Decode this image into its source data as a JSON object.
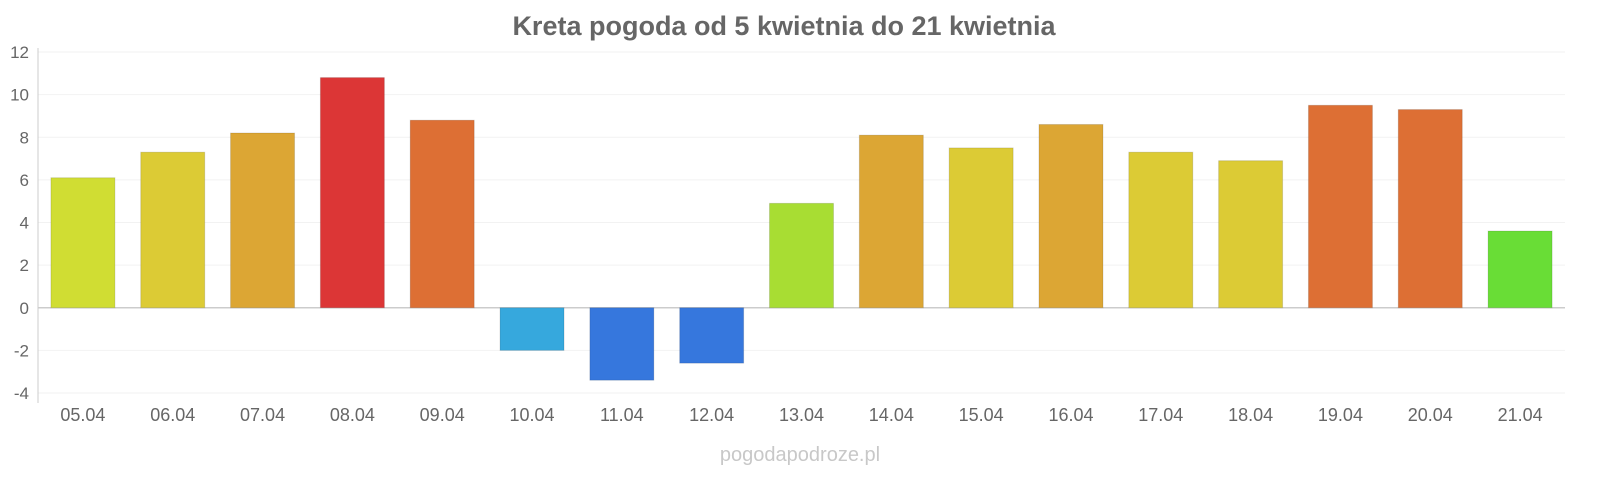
{
  "chart_data": {
    "type": "bar",
    "title": "Kreta pogoda od 5 kwietnia do 21 kwietnia",
    "xlabel": "",
    "ylabel": "",
    "ylim": [
      -4,
      12
    ],
    "yticks": [
      -4,
      -2,
      0,
      2,
      4,
      6,
      8,
      10,
      12
    ],
    "grid": true,
    "categories": [
      "05.04",
      "06.04",
      "07.04",
      "08.04",
      "09.04",
      "10.04",
      "11.04",
      "12.04",
      "13.04",
      "14.04",
      "15.04",
      "16.04",
      "17.04",
      "18.04",
      "19.04",
      "20.04",
      "21.04"
    ],
    "values": [
      6.1,
      7.3,
      8.2,
      10.8,
      8.8,
      -2.0,
      -3.4,
      -2.6,
      4.9,
      8.1,
      7.5,
      8.6,
      7.3,
      6.9,
      9.5,
      9.3,
      3.6
    ],
    "colors": [
      "#d0dd33",
      "#dccb35",
      "#dca634",
      "#dc3636",
      "#dd6f34",
      "#36a8dd",
      "#3677dd",
      "#3677dd",
      "#a8dd33",
      "#dca634",
      "#dccb35",
      "#dca634",
      "#dccb35",
      "#dccb35",
      "#dd6f34",
      "#dd6f34",
      "#69dd36"
    ],
    "watermark": "pogodapodroze.pl"
  }
}
